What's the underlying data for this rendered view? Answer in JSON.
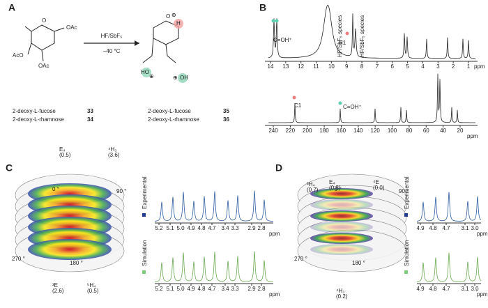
{
  "panel_labels": [
    "A",
    "B",
    "C",
    "D"
  ],
  "scheme": {
    "reagent": "HF/SbF₅",
    "temperature": "−40 °C",
    "substrate_atoms": [
      "O",
      "OAc",
      "AcO",
      "OAc"
    ],
    "product_atoms": [
      "O",
      "⊕",
      "H",
      "HO",
      "⊕",
      "⊕",
      "OH"
    ],
    "starting": [
      {
        "name": "2-deoxy-L-fucose",
        "number": "33"
      },
      {
        "name": "2-deoxy-L-rhamnose",
        "number": "34"
      }
    ],
    "products": [
      {
        "name": "2-deoxy-L-fucose",
        "number": "35"
      },
      {
        "name": "2-deoxy-L-rhamnose",
        "number": "36"
      }
    ]
  },
  "nmr": {
    "h1": {
      "annotations": [
        "C=OH⁺",
        "H1",
        "HF/SbF₅ species",
        "HF/SbF₅ species"
      ],
      "ticks": [
        "14",
        "13",
        "12",
        "11",
        "10",
        "9",
        "8",
        "7",
        "6",
        "5",
        "4",
        "3",
        "2",
        "1"
      ],
      "unit": "ppm"
    },
    "c13": {
      "annotations": [
        "C1",
        "C=OH⁺"
      ],
      "ticks": [
        "240",
        "220",
        "200",
        "180",
        "160",
        "140",
        "120",
        "100",
        "80",
        "60",
        "40",
        "20"
      ],
      "unit": "ppm"
    }
  },
  "panel_c": {
    "conformers": [
      {
        "label": "³E",
        "value": "(2.6)"
      },
      {
        "label": "⁵H₄",
        "value": "(0.5)"
      },
      {
        "label": "E₄",
        "value": "(0.5)"
      },
      {
        "label": "⁴H₃",
        "value": "(3.6)"
      }
    ],
    "angles": [
      "0 °",
      "90 °",
      "270 °",
      "180 °"
    ],
    "spectra": [
      "Experimental",
      "Simulation"
    ],
    "ticks": [
      "5.2",
      "5.1",
      "5.0",
      "4.9",
      "4.8",
      "4.7",
      "3.4",
      "3.3",
      "2.9",
      "2.8"
    ],
    "unit": "ppm"
  },
  "panel_d": {
    "conformers": [
      {
        "label": "³H₄",
        "value": "(0.7)"
      },
      {
        "label": "E₄",
        "value": "(0.8)"
      },
      {
        "label": "⁴E",
        "value": "(0.0)"
      },
      {
        "label": "⁴H₃",
        "value": "(0.2)"
      }
    ],
    "angles": [
      "0 °",
      "90 °",
      "270 °",
      "180 °"
    ],
    "spectra": [
      "Experimental",
      "Simulation"
    ],
    "ticks": [
      "4.9",
      "4.8",
      "4.7",
      "3.1",
      "3.0"
    ],
    "unit": "ppm"
  }
}
